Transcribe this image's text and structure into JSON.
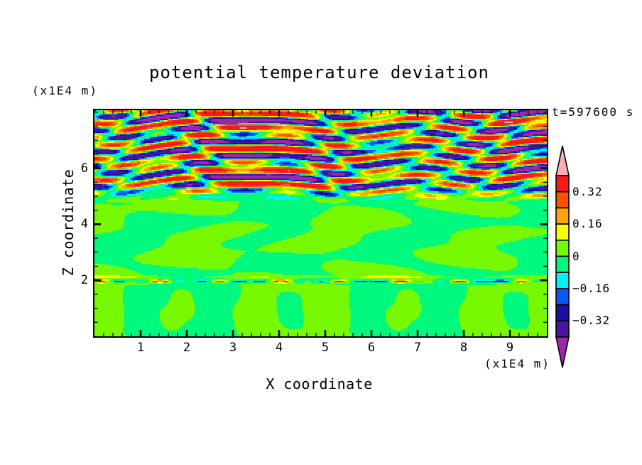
{
  "figure": {
    "background": "#FFFFFF"
  },
  "chart_data": {
    "type": "heatmap",
    "title": "potential temperature deviation",
    "time_annotation": "t=597600 s",
    "xlabel": "X coordinate",
    "ylabel": "Z coordinate",
    "x_unit": "(x1E4 m)",
    "z_unit": "(x1E4 m)",
    "xlim": [
      0,
      9.8
    ],
    "zlim": [
      0,
      8.07
    ],
    "x_major_ticks": [
      1,
      2,
      3,
      4,
      5,
      6,
      7,
      8,
      9
    ],
    "x_minor_step": 0.2,
    "z_major_ticks": [
      2,
      4,
      6
    ],
    "z_minor_step": 0.5,
    "contour_interval": 0.08,
    "levels": [
      -0.4,
      -0.32,
      -0.24,
      -0.16,
      -0.08,
      0,
      0.08,
      0.16,
      0.24,
      0.32,
      0.4
    ],
    "palette": {
      "under_color": "#9C28A8",
      "colors": [
        "#4B11A0",
        "#1A0DA6",
        "#0A57FA",
        "#00F2F2",
        "#00F87C",
        "#77F800",
        "#FCFC00",
        "#FFA405",
        "#FB5200",
        "#FA1A1A"
      ],
      "over_color": "#FCAEB4",
      "frame_color": "#000000"
    },
    "colorbar_labels": [
      "0.32",
      "0.16",
      "0",
      "−0.16",
      "−0.32"
    ],
    "features": [
      {
        "z_range": [
          5.2,
          8.07
        ],
        "description": "strong wavy horizontally-elongated stripe bands (gravity waves) alternating between about +0.4 (red/orange/yellow) and -0.4 (cyan/blue/navy/violet), tilted and interleaved across the full width"
      },
      {
        "z_range": [
          2.15,
          5.2
        ],
        "description": "weak mottled field of horizontally elongated patches between -0.08 and +0.08 (spring green and yellow-green only)"
      },
      {
        "z_range": [
          1.9,
          2.15
        ],
        "description": "thin inversion filament: continuous yellow-green line near z=2.1 with intermittent strong positive/negative dashes (red, orange, yellow, cyan, navy) near z=1.95"
      },
      {
        "z_range": [
          0,
          1.9
        ],
        "description": "convective boundary layer: spring-green background with arch/plume shaped yellow-green cells roughly 1.6 units wide"
      }
    ]
  }
}
